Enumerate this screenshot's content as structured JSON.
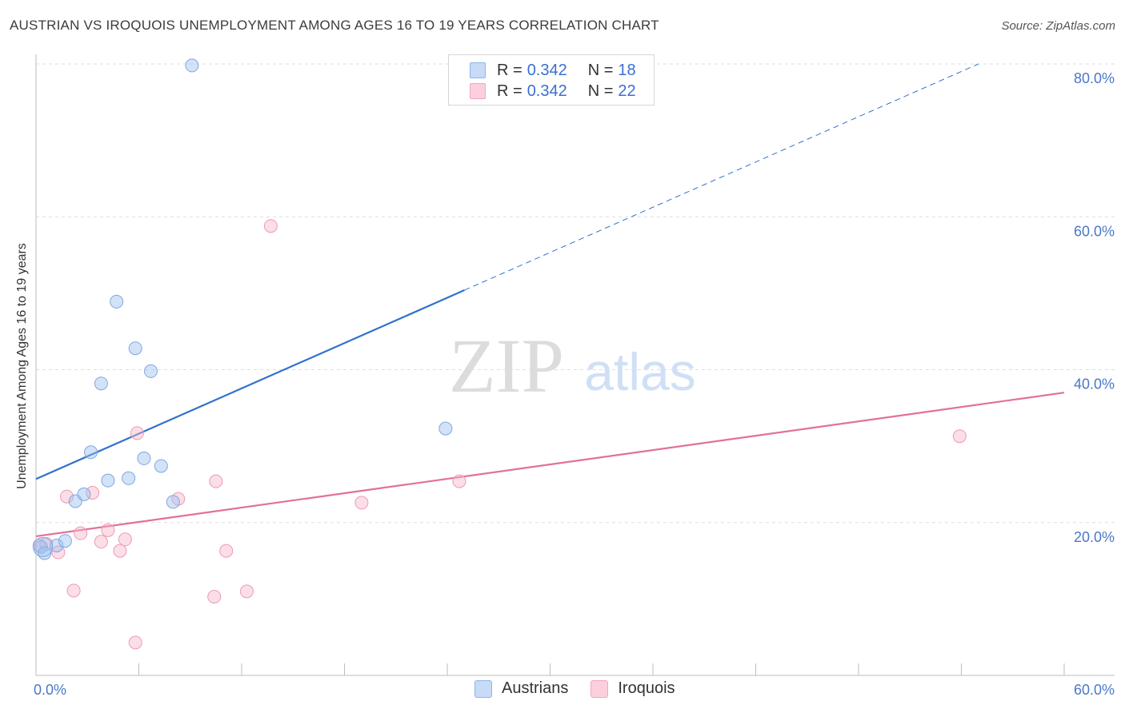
{
  "header": {
    "title": "AUSTRIAN VS IROQUOIS UNEMPLOYMENT AMONG AGES 16 TO 19 YEARS CORRELATION CHART",
    "source": "Source: ZipAtlas.com"
  },
  "watermark": {
    "zip": "ZIP",
    "atlas": "atlas"
  },
  "legend": {
    "r_label": "R =",
    "n_label": "N =",
    "rows": [
      {
        "r": "0.342",
        "n": "18",
        "color": "#9cc0f0"
      },
      {
        "r": "0.342",
        "n": "22",
        "color": "#f7b6c8"
      }
    ]
  },
  "bottom_legend": {
    "austrians": "Austrians",
    "iroquois": "Iroquois"
  },
  "chart_data": {
    "type": "scatter",
    "title": "AUSTRIAN VS IROQUOIS UNEMPLOYMENT AMONG AGES 16 TO 19 YEARS CORRELATION CHART",
    "xlabel": "",
    "ylabel": "Unemployment Among Ages 16 to 19 years",
    "xlim": [
      0,
      60
    ],
    "ylim": [
      0,
      80
    ],
    "x_tick_labels": [
      "0.0%",
      "60.0%"
    ],
    "y_ticks": [
      20,
      40,
      60,
      80
    ],
    "y_tick_labels": [
      "20.0%",
      "40.0%",
      "60.0%",
      "80.0%"
    ],
    "grid": true,
    "series": [
      {
        "name": "Austrians",
        "color": "#9cc0f0",
        "line_color": "#2f72cc",
        "trend": {
          "x0": 0,
          "y0": 25.7,
          "x1": 25,
          "y1": 50.4,
          "x_end": 55,
          "y_end": 80
        },
        "points": [
          {
            "x": 0.3,
            "y": 16.8
          },
          {
            "x": 0.5,
            "y": 16.0
          },
          {
            "x": 1.2,
            "y": 17.0
          },
          {
            "x": 1.7,
            "y": 17.6
          },
          {
            "x": 2.3,
            "y": 22.8
          },
          {
            "x": 2.8,
            "y": 23.7
          },
          {
            "x": 3.2,
            "y": 29.2
          },
          {
            "x": 3.8,
            "y": 38.2
          },
          {
            "x": 4.2,
            "y": 25.5
          },
          {
            "x": 4.7,
            "y": 48.9
          },
          {
            "x": 5.4,
            "y": 25.8
          },
          {
            "x": 5.8,
            "y": 42.8
          },
          {
            "x": 6.3,
            "y": 28.4
          },
          {
            "x": 6.7,
            "y": 39.8
          },
          {
            "x": 7.3,
            "y": 27.4
          },
          {
            "x": 8.0,
            "y": 22.7
          },
          {
            "x": 9.1,
            "y": 79.8
          },
          {
            "x": 23.9,
            "y": 32.3
          }
        ]
      },
      {
        "name": "Iroquois",
        "color": "#f7b6c8",
        "line_color": "#e2709a",
        "trend": {
          "x0": 0,
          "y0": 18.2,
          "x1": 60,
          "y1": 37.0
        },
        "points": [
          {
            "x": 0.2,
            "y": 17.0
          },
          {
            "x": 0.6,
            "y": 17.2
          },
          {
            "x": 1.3,
            "y": 16.1
          },
          {
            "x": 1.8,
            "y": 23.4
          },
          {
            "x": 2.2,
            "y": 11.1
          },
          {
            "x": 2.6,
            "y": 18.6
          },
          {
            "x": 3.3,
            "y": 23.9
          },
          {
            "x": 3.8,
            "y": 17.5
          },
          {
            "x": 4.2,
            "y": 19.0
          },
          {
            "x": 4.9,
            "y": 16.3
          },
          {
            "x": 5.2,
            "y": 17.8
          },
          {
            "x": 5.8,
            "y": 4.3
          },
          {
            "x": 5.9,
            "y": 31.7
          },
          {
            "x": 8.3,
            "y": 23.1
          },
          {
            "x": 10.4,
            "y": 10.3
          },
          {
            "x": 10.5,
            "y": 25.4
          },
          {
            "x": 11.1,
            "y": 16.3
          },
          {
            "x": 12.3,
            "y": 11.0
          },
          {
            "x": 13.7,
            "y": 58.8
          },
          {
            "x": 19.0,
            "y": 22.6
          },
          {
            "x": 24.7,
            "y": 25.4
          },
          {
            "x": 53.9,
            "y": 31.3
          }
        ]
      }
    ]
  }
}
